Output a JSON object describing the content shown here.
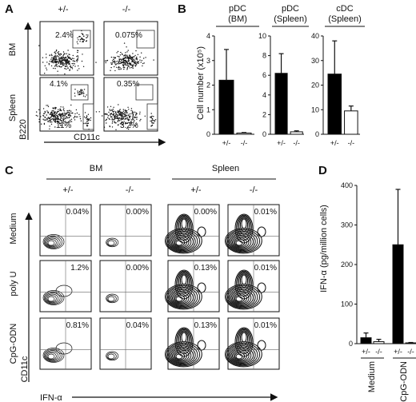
{
  "panel_letters": {
    "a": "A",
    "b": "B",
    "c": "C",
    "d": "D"
  },
  "panel_a": {
    "col_headers": [
      "+/-",
      "-/-"
    ],
    "row_labels": [
      "BM",
      "Spleen"
    ],
    "y_axis_label": "B220",
    "x_axis_label": "CD11c",
    "gate_labels": {
      "bm_het": "2.4%",
      "bm_ko": "0.075%",
      "spleen_het_pdc": "4.1%",
      "spleen_het_cdc": "11%",
      "spleen_ko_pdc": "0.35%",
      "spleen_ko_cdc": "3.2%"
    }
  },
  "panel_c": {
    "group_headers": [
      "BM",
      "Spleen"
    ],
    "col_headers": [
      "+/-",
      "-/-",
      "+/-",
      "-/-"
    ],
    "row_labels": [
      "Medium",
      "poly U",
      "CpG-ODN"
    ],
    "percentages": [
      [
        "0.04%",
        "0.00%",
        "0.00%",
        "0.01%"
      ],
      [
        "1.2%",
        "0.00%",
        "0.13%",
        "0.01%"
      ],
      [
        "0.81%",
        "0.04%",
        "0.13%",
        "0.01%"
      ]
    ],
    "y_axis_label": "CD11c",
    "x_axis_label": "IFN-α"
  },
  "colors": {
    "black_bar": "#000000",
    "white_bar": "#ffffff",
    "axis": "#111111"
  },
  "chart_data": [
    {
      "type": "bar",
      "title": "pDC",
      "subtitle": "(BM)",
      "ylabel": "Cell number (x10⁵)",
      "categories": [
        "+/-",
        "-/-"
      ],
      "values": [
        2.2,
        0.05
      ],
      "errors": [
        1.25,
        0.02
      ],
      "ylim": [
        0,
        4
      ],
      "yticks": [
        0,
        1,
        2,
        3,
        4
      ]
    },
    {
      "type": "bar",
      "title": "pDC",
      "subtitle": "(Spleen)",
      "categories": [
        "+/-",
        "-/-"
      ],
      "values": [
        6.2,
        0.25
      ],
      "errors": [
        2.0,
        0.1
      ],
      "ylim": [
        0,
        10
      ],
      "yticks": [
        0,
        2,
        4,
        6,
        8,
        10
      ]
    },
    {
      "type": "bar",
      "title": "cDC",
      "subtitle": "(Spleen)",
      "categories": [
        "+/-",
        "-/-"
      ],
      "values": [
        24.5,
        9.5
      ],
      "errors": [
        13.5,
        2.0
      ],
      "ylim": [
        0,
        40
      ],
      "yticks": [
        0,
        10,
        20,
        30,
        40
      ]
    },
    {
      "type": "bar",
      "ylabel": "IFN-α (pg/million cells)",
      "categories": [
        "+/-",
        "-/-",
        "+/-",
        "-/-"
      ],
      "group_labels": [
        "Medium",
        "CpG-ODN"
      ],
      "values": [
        15,
        5,
        250,
        2
      ],
      "errors": [
        12,
        6,
        140,
        1
      ],
      "ylim": [
        0,
        400
      ],
      "yticks": [
        0,
        100,
        200,
        300,
        400
      ]
    }
  ]
}
